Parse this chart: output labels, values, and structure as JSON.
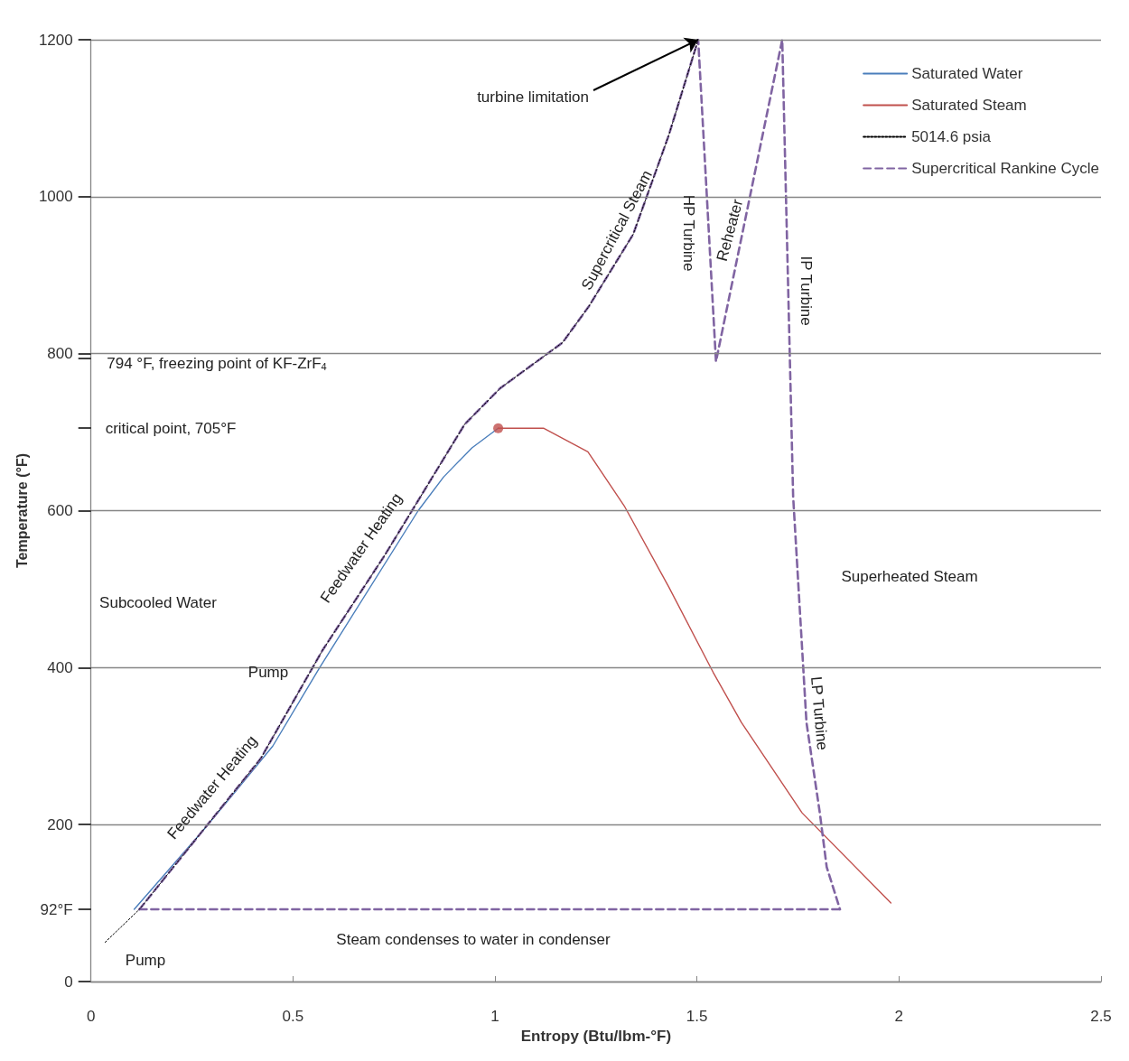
{
  "chart_data": {
    "type": "line",
    "xlabel": "Entropy (Btu/lbm-°F)",
    "ylabel": "Temperature (°F)",
    "xlim": [
      0,
      2.5
    ],
    "xticks": [
      0,
      0.5,
      1,
      1.5,
      2,
      2.5
    ],
    "ylim": [
      0,
      1200
    ],
    "yticks": [
      0,
      {
        "value": 92,
        "label": "92°F"
      },
      200,
      400,
      600,
      {
        "value": 705,
        "label": null
      },
      800,
      {
        "value": 794,
        "label": null
      },
      1000,
      1200
    ],
    "grid": "y",
    "legend": "top right",
    "series": [
      {
        "name": "Saturated Water",
        "color": "#4a7ebb",
        "line_style": "solid",
        "x": [
          0.107,
          0.29,
          0.45,
          0.566,
          0.81,
          0.873,
          0.943,
          1.008
        ],
        "values": [
          92,
          200,
          300,
          400,
          600,
          643,
          680,
          705
        ]
      },
      {
        "name": "Saturated Steam",
        "color": "#c0504d",
        "line_style": "solid",
        "x": [
          1.008,
          1.12,
          1.23,
          1.32,
          1.43,
          1.54,
          1.61,
          1.76,
          1.98
        ],
        "values": [
          705,
          705,
          675,
          606,
          503,
          394,
          330,
          215,
          100
        ]
      },
      {
        "name": "5014.6 psia",
        "color": "#000000",
        "line_style": "dotted",
        "x": [
          0.035,
          0.12,
          0.42,
          0.573,
          0.727,
          0.925,
          1.013,
          1.167,
          1.232,
          1.342,
          1.43,
          1.503
        ],
        "values": [
          50,
          92,
          284,
          422,
          543,
          710,
          756,
          814,
          860,
          952,
          1078,
          1200
        ]
      },
      {
        "name": "Supercritical Rankine Cycle",
        "color": "#8064a2",
        "line_style": "dashed",
        "x": [
          0.12,
          0.42,
          0.573,
          0.727,
          0.925,
          1.013,
          1.167,
          1.232,
          1.342,
          1.43,
          1.503,
          1.547,
          1.711,
          1.738,
          1.771,
          1.804,
          1.821,
          1.854
        ],
        "values": [
          92,
          284,
          422,
          543,
          710,
          756,
          814,
          860,
          952,
          1078,
          1200,
          790,
          1200,
          618,
          330,
          215,
          146,
          92
        ]
      },
      {
        "color": "#8064a2",
        "line_style": "dashed",
        "x": [
          0.12,
          1.854
        ],
        "values": [
          92,
          92
        ]
      },
      {
        "type": "scatter",
        "color": "#c0504d",
        "marker": "circle",
        "x": [
          1.008
        ],
        "values": [
          705
        ]
      }
    ],
    "annotations": [
      {
        "text": "turbine limitation",
        "x": 1.503,
        "y": 1200
      },
      "Supercritical Steam",
      "HP Turbine",
      "Reheater",
      "IP Turbine",
      "Superheated Steam",
      "LP Turbine",
      "Feedwater Heating",
      "Feedwater Heating",
      "Pump",
      "Pump",
      "Subcooled Water",
      "Steam condenses to water in condenser",
      "794 °F, freezing point of KF-ZrF$_{4}$",
      "critical point, 705°F"
    ]
  }
}
